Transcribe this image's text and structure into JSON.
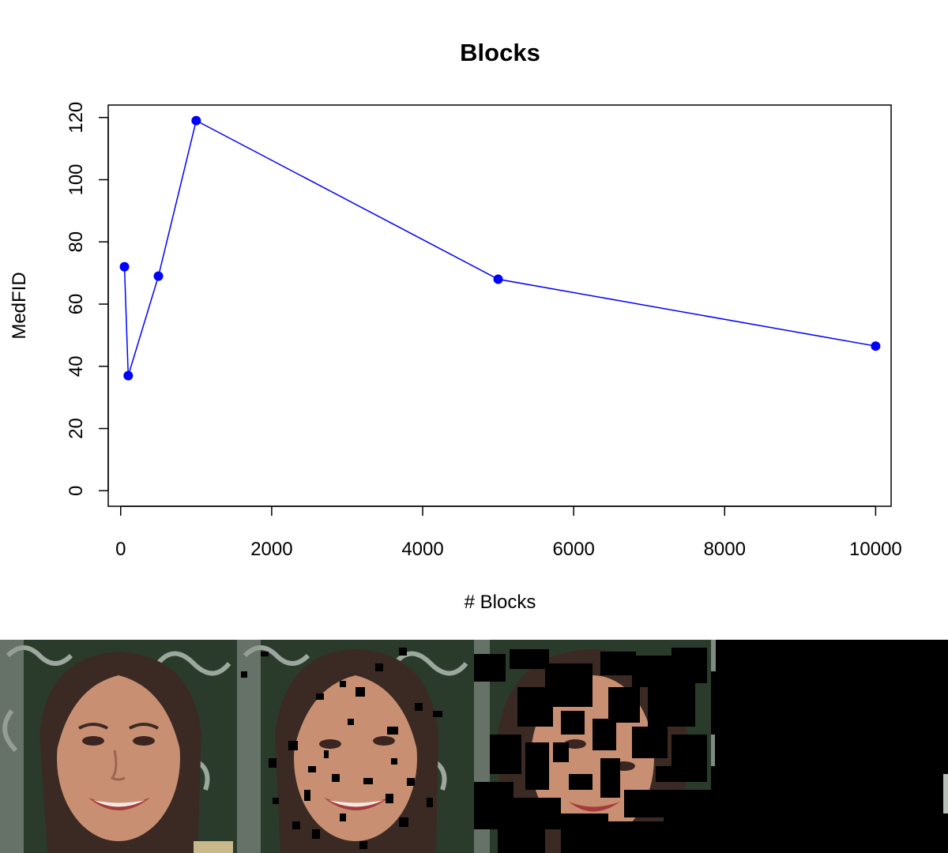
{
  "chart_data": {
    "type": "line",
    "title": "Blocks",
    "xlabel": "# Blocks",
    "ylabel": "MedFID",
    "xlim": [
      -165,
      10205
    ],
    "ylim": [
      -5,
      124
    ],
    "x_ticks": [
      0,
      2000,
      4000,
      6000,
      8000,
      10000
    ],
    "y_ticks": [
      0,
      20,
      40,
      60,
      80,
      100,
      120
    ],
    "series": [
      {
        "x": [
          50,
          100,
          500,
          1000,
          5000,
          10000
        ],
        "values": [
          72,
          37,
          69,
          119,
          68,
          46.5
        ]
      }
    ],
    "colors": {
      "line": "#0000ff",
      "point": "#0000ff"
    },
    "grid": false,
    "legend": "none"
  },
  "image_strip": {
    "panels": [
      {
        "name": "original",
        "occlusion": "none"
      },
      {
        "name": "sparse-blocks",
        "occlusion": "small scattered blocks"
      },
      {
        "name": "dense-blocks",
        "occlusion": "large dense blocks"
      },
      {
        "name": "fully-masked",
        "occlusion": "full"
      }
    ]
  }
}
